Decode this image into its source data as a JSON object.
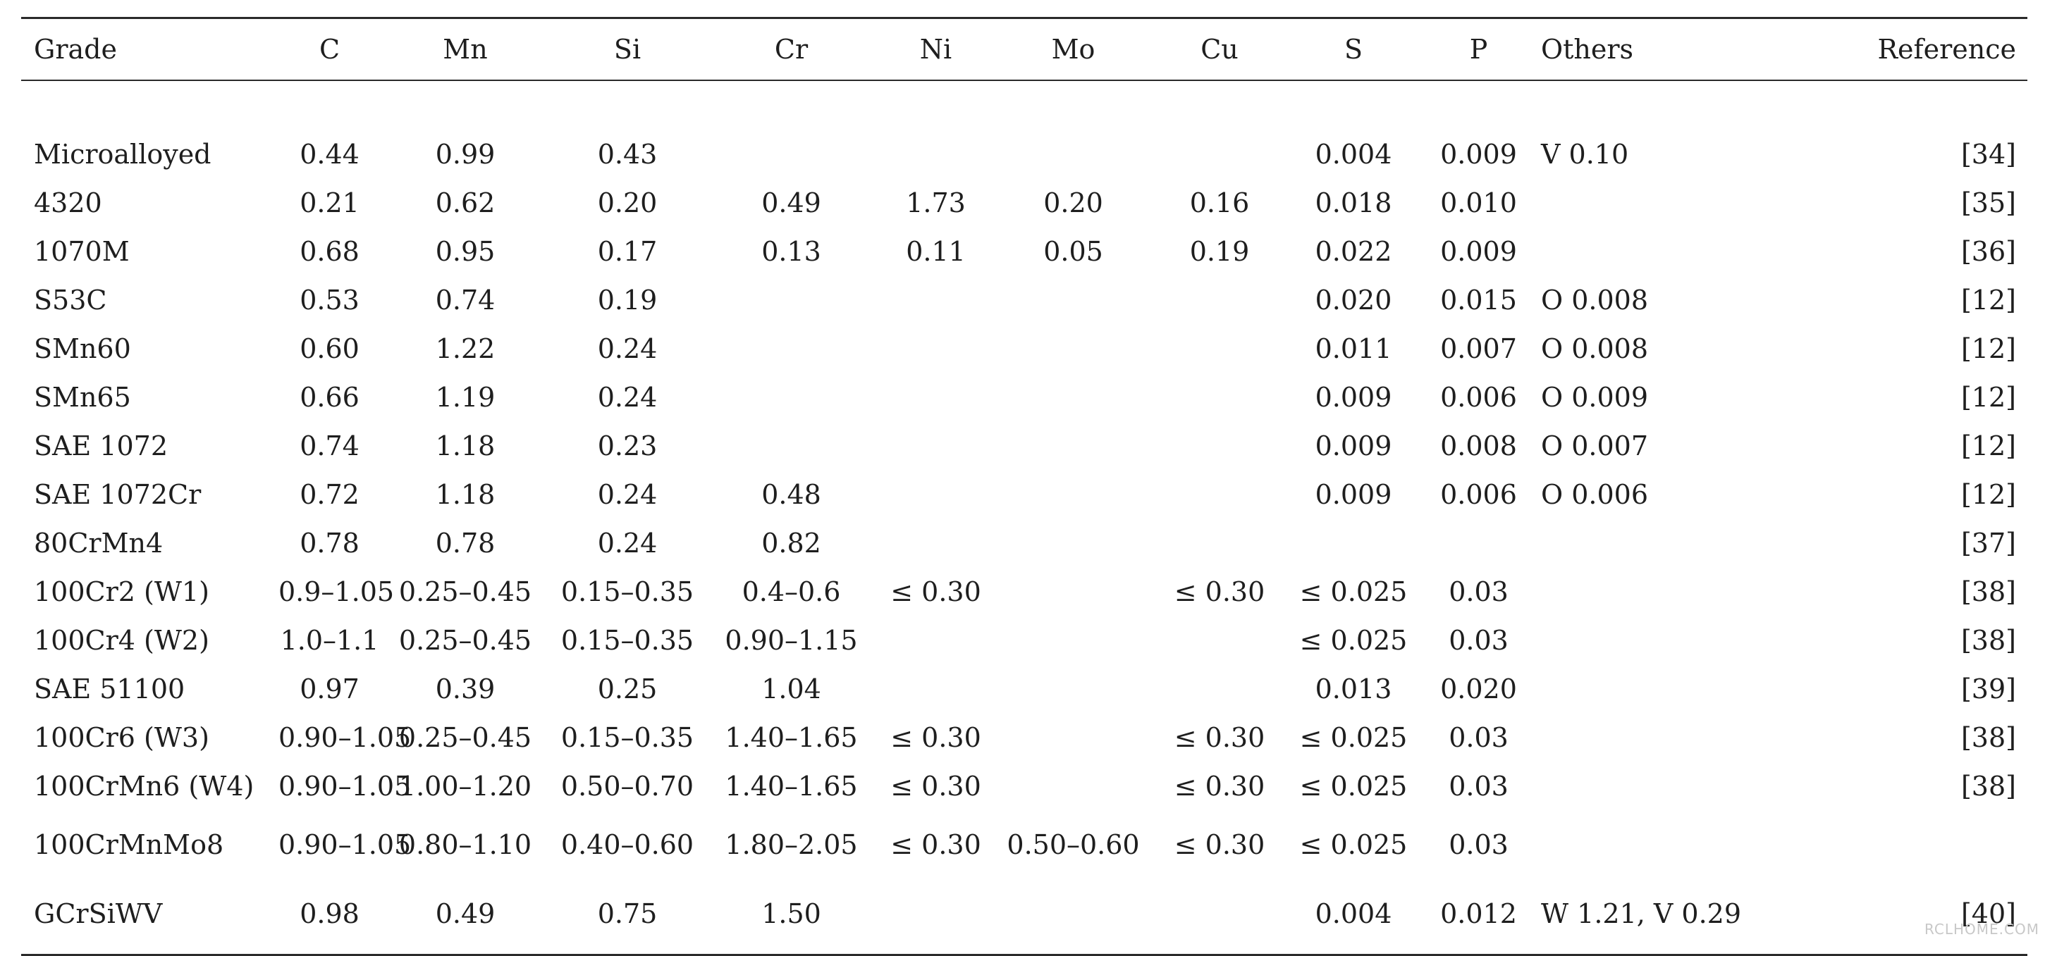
{
  "table": {
    "headers": [
      "Grade",
      "C",
      "Mn",
      "Si",
      "Cr",
      "Ni",
      "Mo",
      "Cu",
      "S",
      "P",
      "Others",
      "Reference"
    ],
    "rows": [
      [
        "Microalloyed",
        "0.44",
        "0.99",
        "0.43",
        "",
        "",
        "",
        "",
        "0.004",
        "0.009",
        "V 0.10",
        "[34]"
      ],
      [
        "4320",
        "0.21",
        "0.62",
        "0.20",
        "0.49",
        "1.73",
        "0.20",
        "0.16",
        "0.018",
        "0.010",
        "",
        "[35]"
      ],
      [
        "1070M",
        "0.68",
        "0.95",
        "0.17",
        "0.13",
        "0.11",
        "0.05",
        "0.19",
        "0.022",
        "0.009",
        "",
        "[36]"
      ],
      [
        "S53C",
        "0.53",
        "0.74",
        "0.19",
        "",
        "",
        "",
        "",
        "0.020",
        "0.015",
        "O 0.008",
        "[12]"
      ],
      [
        "SMn60",
        "0.60",
        "1.22",
        "0.24",
        "",
        "",
        "",
        "",
        "0.011",
        "0.007",
        "O 0.008",
        "[12]"
      ],
      [
        "SMn65",
        "0.66",
        "1.19",
        "0.24",
        "",
        "",
        "",
        "",
        "0.009",
        "0.006",
        "O 0.009",
        "[12]"
      ],
      [
        "SAE 1072",
        "0.74",
        "1.18",
        "0.23",
        "",
        "",
        "",
        "",
        "0.009",
        "0.008",
        "O 0.007",
        "[12]"
      ],
      [
        "SAE 1072Cr",
        "0.72",
        "1.18",
        "0.24",
        "0.48",
        "",
        "",
        "",
        "0.009",
        "0.006",
        "O 0.006",
        "[12]"
      ],
      [
        "80CrMn4",
        "0.78",
        "0.78",
        "0.24",
        "0.82",
        "",
        "",
        "",
        "",
        "",
        "",
        "[37]"
      ],
      [
        "100Cr2 (W1)",
        "0.9–1.05",
        "0.25–0.45",
        "0.15–0.35",
        "0.4–0.6",
        "≤ 0.30",
        "",
        "≤ 0.30",
        "≤ 0.025",
        "0.03",
        "",
        "[38]"
      ],
      [
        "100Cr4 (W2)",
        "1.0–1.1",
        "0.25–0.45",
        "0.15–0.35",
        "0.90–1.15",
        "",
        "",
        "",
        "≤ 0.025",
        "0.03",
        "",
        "[38]"
      ],
      [
        "SAE 51100",
        "0.97",
        "0.39",
        "0.25",
        "1.04",
        "",
        "",
        "",
        "0.013",
        "0.020",
        "",
        "[39]"
      ],
      [
        "100Cr6 (W3)",
        "0.90–1.05",
        "0.25–0.45",
        "0.15–0.35",
        "1.40–1.65",
        "≤ 0.30",
        "",
        "≤ 0.30",
        "≤ 0.025",
        "0.03",
        "",
        "[38]"
      ],
      [
        "100CrMn6 (W4)",
        "0.90–1.05",
        "1.00–1.20",
        "0.50–0.70",
        "1.40–1.65",
        "≤ 0.30",
        "",
        "≤ 0.30",
        "≤ 0.025",
        "0.03",
        "",
        "[38]"
      ],
      [
        "100CrMnMo8",
        "0.90–1.05",
        "0.80–1.10",
        "0.40–0.60",
        "1.80–2.05",
        "≤ 0.30",
        "0.50–0.60",
        "≤ 0.30",
        "≤ 0.025",
        "0.03",
        "",
        ""
      ],
      [
        "GCrSiWV",
        "0.98",
        "0.49",
        "0.75",
        "1.50",
        "",
        "",
        "",
        "0.004",
        "0.012",
        "W 1.21, V 0.29",
        "[40]"
      ]
    ],
    "tall_rows": [
      14,
      15
    ]
  },
  "watermark": "RCLHOME.COM"
}
